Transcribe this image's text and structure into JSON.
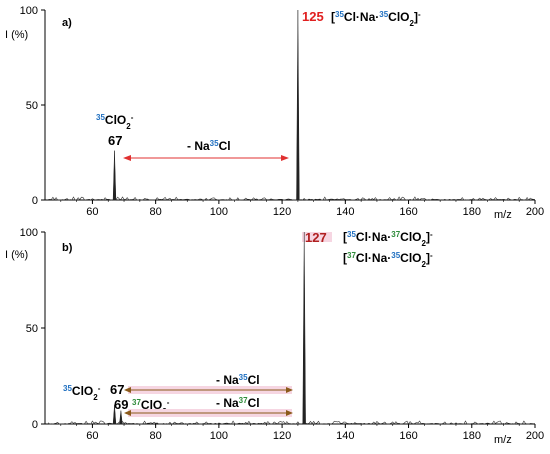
{
  "chart_data": [
    {
      "type": "line",
      "panel_label": "a)",
      "ylabel": "I (%)",
      "xlabel": "m/z",
      "xlim": [
        45,
        200
      ],
      "ylim": [
        0,
        100
      ],
      "xticks": [
        "60",
        "80",
        "100",
        "120",
        "140",
        "160",
        "180",
        "200"
      ],
      "yticks": [
        "0",
        "50",
        "100"
      ],
      "series": [
        {
          "x": [
            67,
            125
          ],
          "y": [
            26,
            100
          ]
        }
      ],
      "peak_labels": [
        {
          "text": "67",
          "x": 67
        },
        {
          "text": "125",
          "x": 125
        }
      ],
      "annotations": {
        "ion_67": {
          "sup": "35",
          "main": "ClO",
          "sub": "2",
          "charge": "-"
        },
        "ion_125": {
          "open": "[",
          "sup1": "35",
          "mid1": "Cl·Na·",
          "sup2": "35",
          "main": "ClO",
          "sub": "2",
          "close": "]",
          "charge": "-"
        },
        "loss": {
          "prefix": "- Na",
          "sup": "35",
          "main": "Cl"
        }
      }
    },
    {
      "type": "line",
      "panel_label": "b)",
      "ylabel": "I (%)",
      "xlabel": "m/z",
      "xlim": [
        45,
        200
      ],
      "ylim": [
        0,
        100
      ],
      "xticks": [
        "60",
        "80",
        "100",
        "120",
        "140",
        "160",
        "180",
        "200"
      ],
      "yticks": [
        "0",
        "50",
        "100"
      ],
      "series": [
        {
          "x": [
            67,
            69,
            127
          ],
          "y": [
            10,
            7,
            100
          ]
        }
      ],
      "peak_labels": [
        {
          "text": "67",
          "x": 67
        },
        {
          "text": "69",
          "x": 69
        },
        {
          "text": "127",
          "x": 127
        }
      ],
      "annotations": {
        "ion_67": {
          "sup": "35",
          "main": "ClO",
          "sub": "2",
          "charge": "-"
        },
        "ion_69": {
          "sup": "37",
          "main": "ClO",
          "sub": "2",
          "charge": "-"
        },
        "ion_127_a": {
          "open": "[",
          "sup1": "35",
          "mid1": "Cl·Na·",
          "sup2": "37",
          "main": "ClO",
          "sub": "2",
          "close": "]",
          "charge": "-"
        },
        "ion_127_b": {
          "open": "[",
          "sup1": "37",
          "mid1": "Cl·Na·",
          "sup2": "35",
          "main": "ClO",
          "sub": "2",
          "close": "]",
          "charge": "-"
        },
        "loss_35": {
          "prefix": "- Na",
          "sup": "35",
          "main": "Cl"
        },
        "loss_37": {
          "prefix": "- Na",
          "sup": "37",
          "main": "Cl"
        }
      }
    }
  ],
  "colors": {
    "cl35": "#1f6fc0",
    "cl37": "#2e8b3a",
    "arrow_a": "#e03030",
    "arrow_b": "#8b5a1a",
    "peak_highlight": "#e02020",
    "band_pink": "#f6d6e2"
  }
}
